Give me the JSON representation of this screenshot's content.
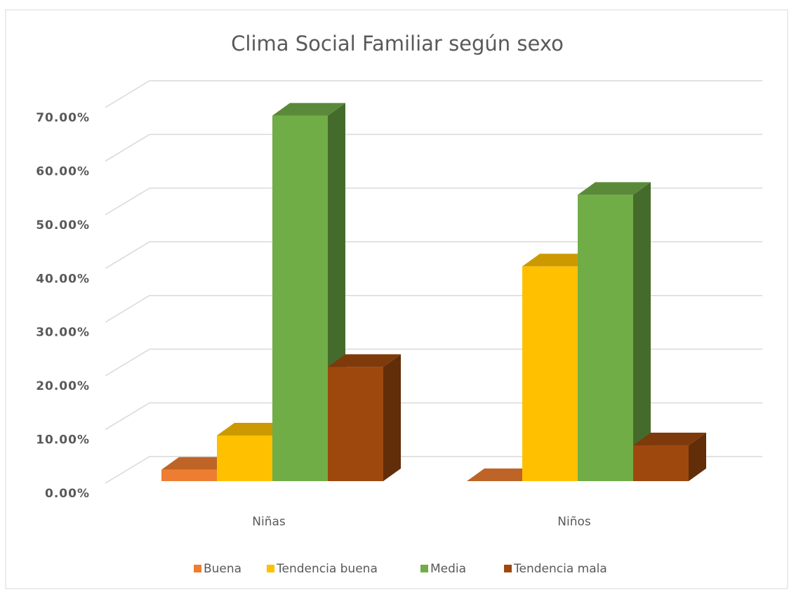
{
  "chart_data": {
    "type": "bar3d",
    "title": "Clima Social Familiar según sexo",
    "categories": [
      "Niñas",
      "Niños"
    ],
    "series": [
      {
        "name": "Buena",
        "color": "#ed7d31",
        "values": [
          2.13,
          0
        ]
      },
      {
        "name": "Tendencia buena",
        "color": "#ffc000",
        "values": [
          8.51,
          40.0
        ]
      },
      {
        "name": "Media",
        "color": "#70ad47",
        "values": [
          68.09,
          53.33
        ]
      },
      {
        "name": "Tendencia mala",
        "color": "#9e480e",
        "values": [
          21.28,
          6.67
        ]
      }
    ],
    "ylim": [
      0,
      70
    ],
    "yticks": [
      {
        "value": 0,
        "label": "0.00%"
      },
      {
        "value": 10,
        "label": "10.00%"
      },
      {
        "value": 20,
        "label": "20.00%"
      },
      {
        "value": 30,
        "label": "30.00%"
      },
      {
        "value": 40,
        "label": "40.00%"
      },
      {
        "value": 50,
        "label": "50.00%"
      },
      {
        "value": 60,
        "label": "60.00%"
      },
      {
        "value": 70,
        "label": "70.00%"
      }
    ],
    "grid": true,
    "legend": "bottom"
  }
}
